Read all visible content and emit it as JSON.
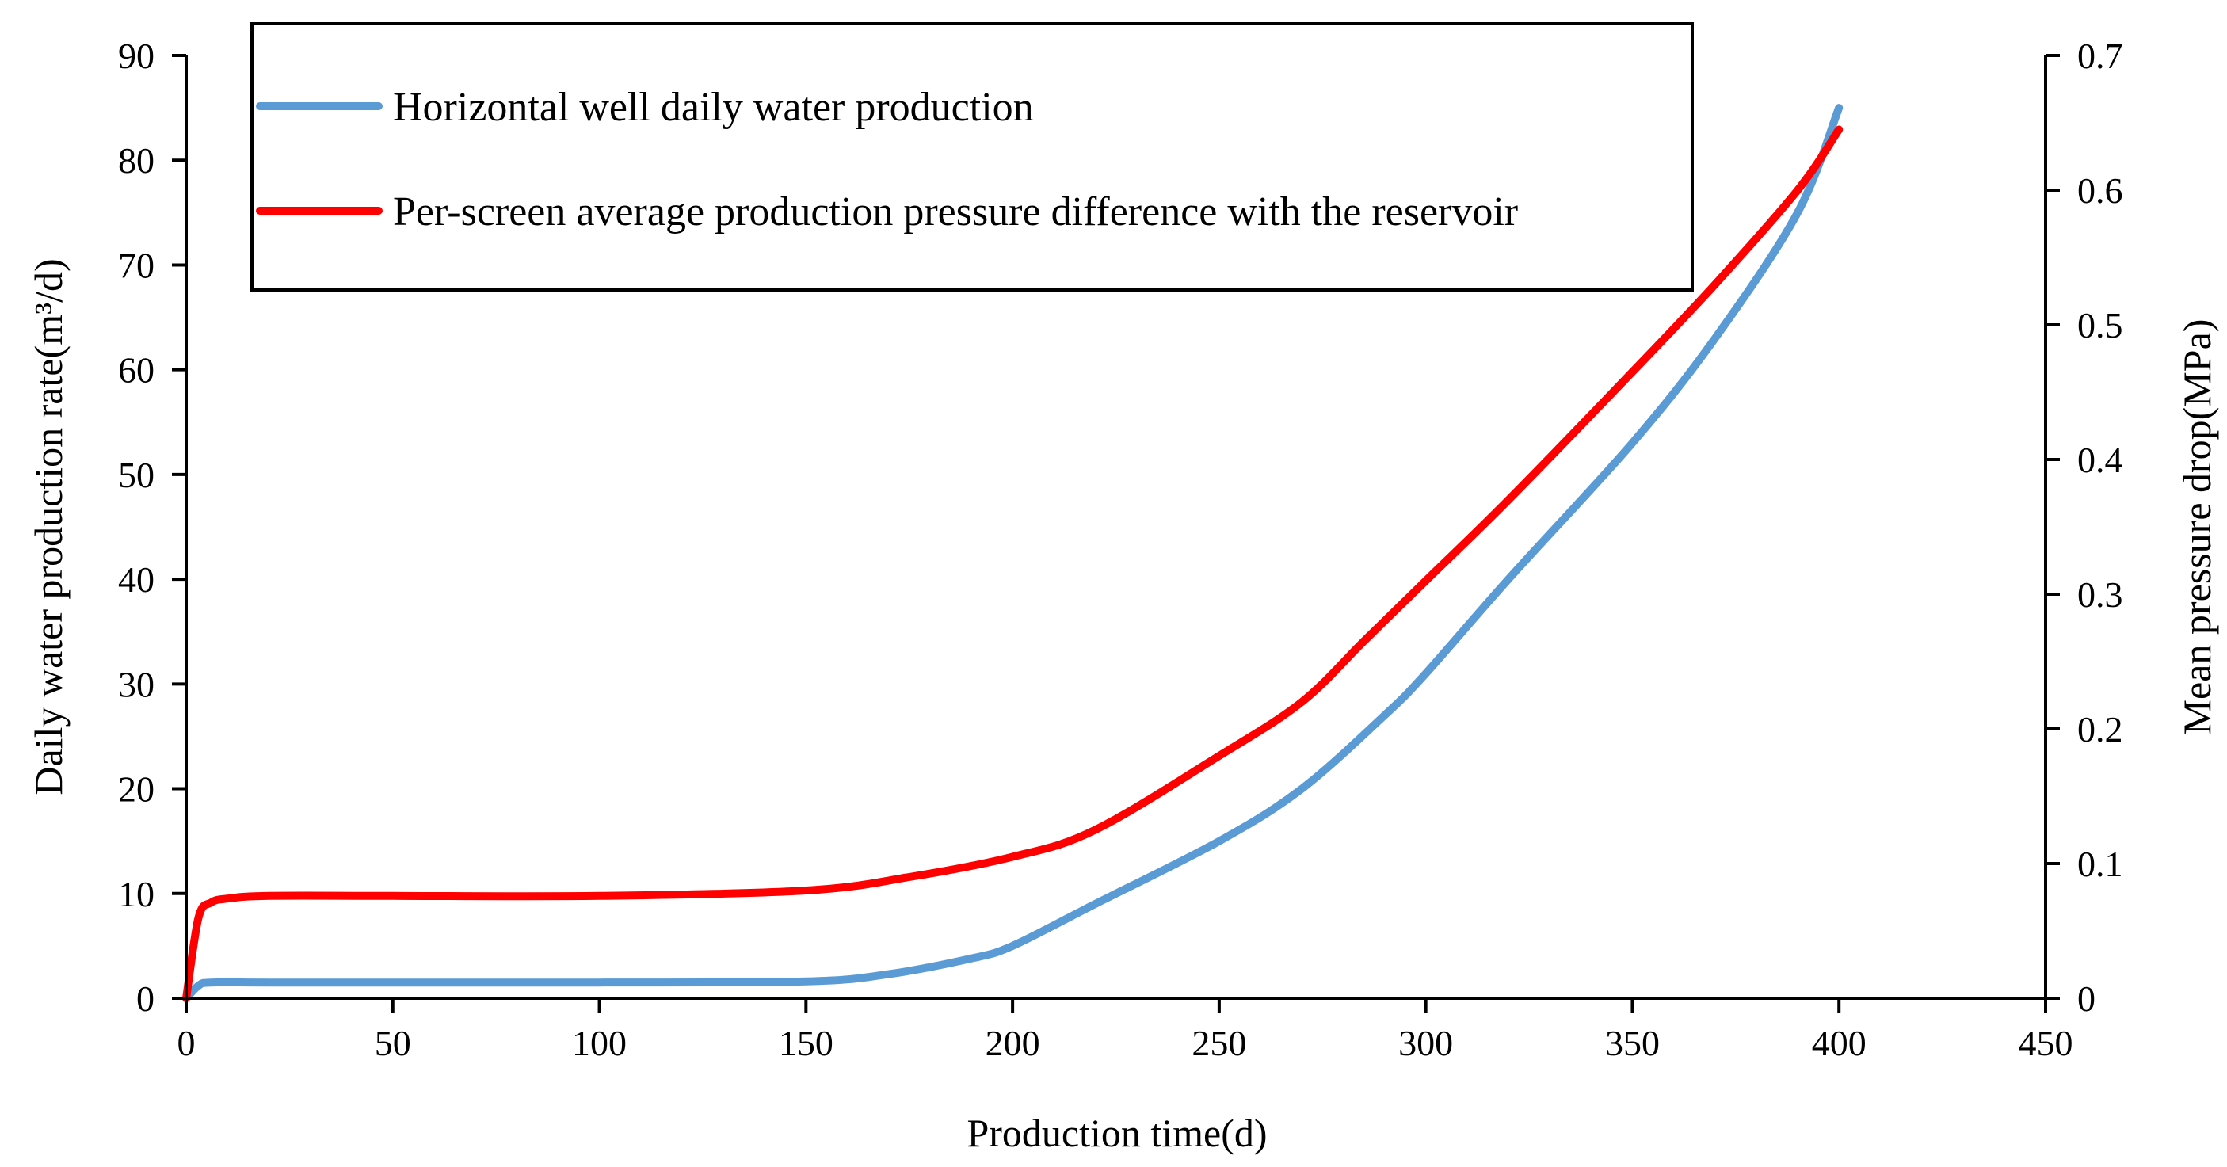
{
  "chart_data": {
    "type": "line",
    "title": "",
    "xlabel": "Production time(d)",
    "ylabel": "Daily water production rate(m³/d)",
    "y2label": "Mean pressure drop(MPa)",
    "xlim": [
      0,
      450
    ],
    "ylim": [
      0,
      90
    ],
    "y2lim": [
      0,
      0.7
    ],
    "xticks": [
      "0",
      "50",
      "100",
      "150",
      "200",
      "250",
      "300",
      "350",
      "400",
      "450"
    ],
    "yticks": [
      "0",
      "10",
      "20",
      "30",
      "40",
      "50",
      "60",
      "70",
      "80",
      "90"
    ],
    "y2ticks": [
      "0",
      "0.1",
      "0.2",
      "0.3",
      "0.4",
      "0.5",
      "0.6",
      "0.7"
    ],
    "grid": false,
    "legend_position": "top-left",
    "series": [
      {
        "name": "Horizontal well daily water production",
        "axis": "left",
        "color": "#5B9BD5",
        "x": [
          0,
          3,
          6,
          20,
          50,
          100,
          150,
          170,
          190,
          200,
          220,
          250,
          270,
          290,
          300,
          320,
          350,
          370,
          390,
          400
        ],
        "y": [
          0,
          1.2,
          1.5,
          1.5,
          1.5,
          1.5,
          1.6,
          2.3,
          3.8,
          5,
          9,
          15,
          20,
          27,
          31,
          40,
          53,
          63,
          75,
          85
        ]
      },
      {
        "name": "Per-screen average production pressure difference with the reservoir",
        "axis": "right",
        "color": "#FF0000",
        "x": [
          0,
          3,
          6,
          10,
          20,
          50,
          100,
          150,
          175,
          200,
          220,
          250,
          270,
          285,
          300,
          320,
          350,
          370,
          390,
          400
        ],
        "y": [
          0,
          0.06,
          0.071,
          0.074,
          0.076,
          0.076,
          0.076,
          0.08,
          0.09,
          0.105,
          0.125,
          0.18,
          0.22,
          0.265,
          0.31,
          0.37,
          0.465,
          0.53,
          0.6,
          0.645
        ]
      }
    ]
  }
}
